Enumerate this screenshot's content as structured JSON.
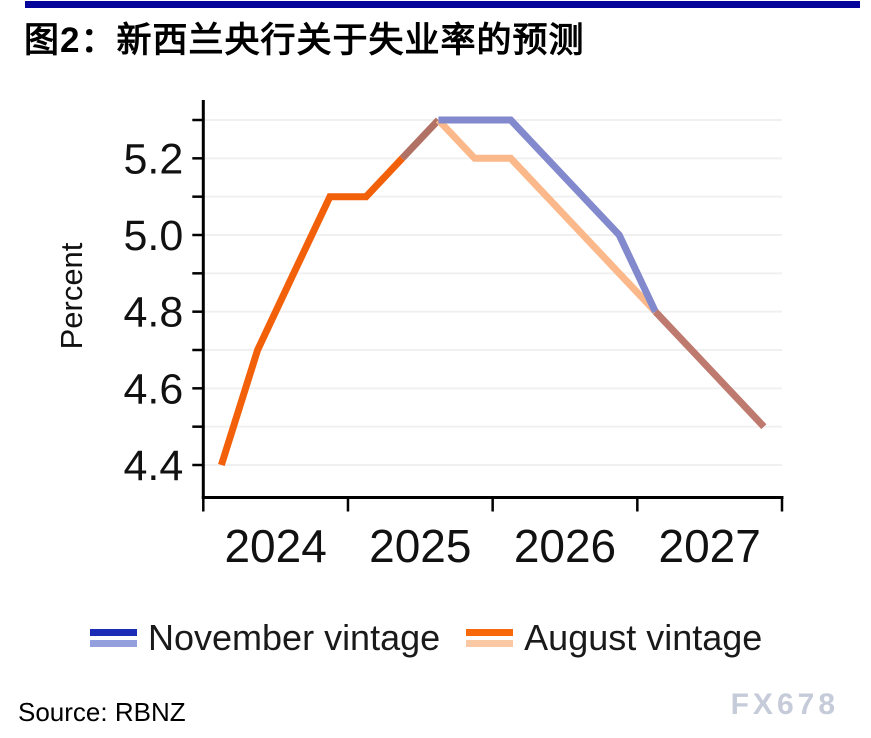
{
  "header": {
    "title": "图2：新西兰央行关于失业率的预测",
    "bar_color": "#04049a"
  },
  "chart_data": {
    "type": "line",
    "title": "图2：新西兰央行关于失业率的预测",
    "ylabel": "Percent",
    "categories": [
      "2024Q1",
      "2024Q2",
      "2024Q3",
      "2024Q4",
      "2025Q1",
      "2025Q2",
      "2025Q3",
      "2025Q4",
      "2026Q1",
      "2026Q2",
      "2026Q3",
      "2026Q4",
      "2027Q1",
      "2027Q2",
      "2027Q3",
      "2027Q4"
    ],
    "x_year_labels": [
      "2024",
      "2025",
      "2026",
      "2027"
    ],
    "y_ticks": [
      4.4,
      4.5,
      4.6,
      4.7,
      4.8,
      4.9,
      5.0,
      5.1,
      5.2,
      5.3
    ],
    "y_tick_labels": [
      "4.4",
      "4.6",
      "4.8",
      "5.0",
      "5.2"
    ],
    "ylim": [
      4.31,
      5.35
    ],
    "grid": "horizontal",
    "gridline_color": "#f0f0f0",
    "axis_color": "#000000",
    "legend_position": "bottom",
    "series": [
      {
        "name": "November vintage",
        "values": [
          4.4,
          4.7,
          4.9,
          5.1,
          5.1,
          5.2,
          5.3,
          5.3,
          5.3,
          5.2,
          5.1,
          5.0,
          4.8,
          4.7,
          4.6,
          4.5
        ],
        "forecast_from": "2025Q4",
        "colors": {
          "history": "#1c2db5",
          "forecast": "#8289cc"
        }
      },
      {
        "name": "August vintage",
        "values": [
          4.4,
          4.7,
          4.9,
          5.1,
          5.1,
          5.2,
          5.3,
          5.2,
          5.2,
          5.1,
          5.0,
          4.9,
          4.8,
          4.7,
          4.6,
          4.5
        ],
        "forecast_from": "2025Q3",
        "colors": {
          "history": "#f2600a",
          "forecast": "#fbb88a"
        }
      }
    ],
    "drawn_segments": [
      {
        "label": "shared-history-dark-orange",
        "color": "#f2600a",
        "points": [
          [
            0,
            4.4
          ],
          [
            1,
            4.7
          ],
          [
            2,
            4.9
          ],
          [
            3,
            5.1
          ],
          [
            4,
            5.1
          ],
          [
            5,
            5.2
          ]
        ]
      },
      {
        "label": "overlap-rise-brown",
        "color": "#b17165",
        "points": [
          [
            5,
            5.2
          ],
          [
            6,
            5.3
          ]
        ]
      },
      {
        "label": "august-forecast-light-orange",
        "color": "#fbb88a",
        "points": [
          [
            6,
            5.3
          ],
          [
            7,
            5.2
          ],
          [
            8,
            5.2
          ],
          [
            12,
            4.8
          ]
        ]
      },
      {
        "label": "november-forecast-periwinkle",
        "color": "#8289cc",
        "points": [
          [
            6,
            5.3
          ],
          [
            8,
            5.3
          ],
          [
            11,
            5.0
          ],
          [
            12,
            4.8
          ]
        ]
      },
      {
        "label": "overlap-tail-brown",
        "color": "#be7a6e",
        "points": [
          [
            12,
            4.8
          ],
          [
            13,
            4.7
          ],
          [
            14,
            4.6
          ],
          [
            15,
            4.5
          ]
        ]
      }
    ]
  },
  "legend": {
    "items": [
      {
        "label": "November vintage",
        "swatch": [
          "#1c2db5",
          "#94a0de"
        ]
      },
      {
        "label": "August vintage",
        "swatch": [
          "#f8690b",
          "#fac8a2"
        ]
      }
    ]
  },
  "footer": {
    "source": "Source: RBNZ",
    "watermark": "FX678"
  }
}
